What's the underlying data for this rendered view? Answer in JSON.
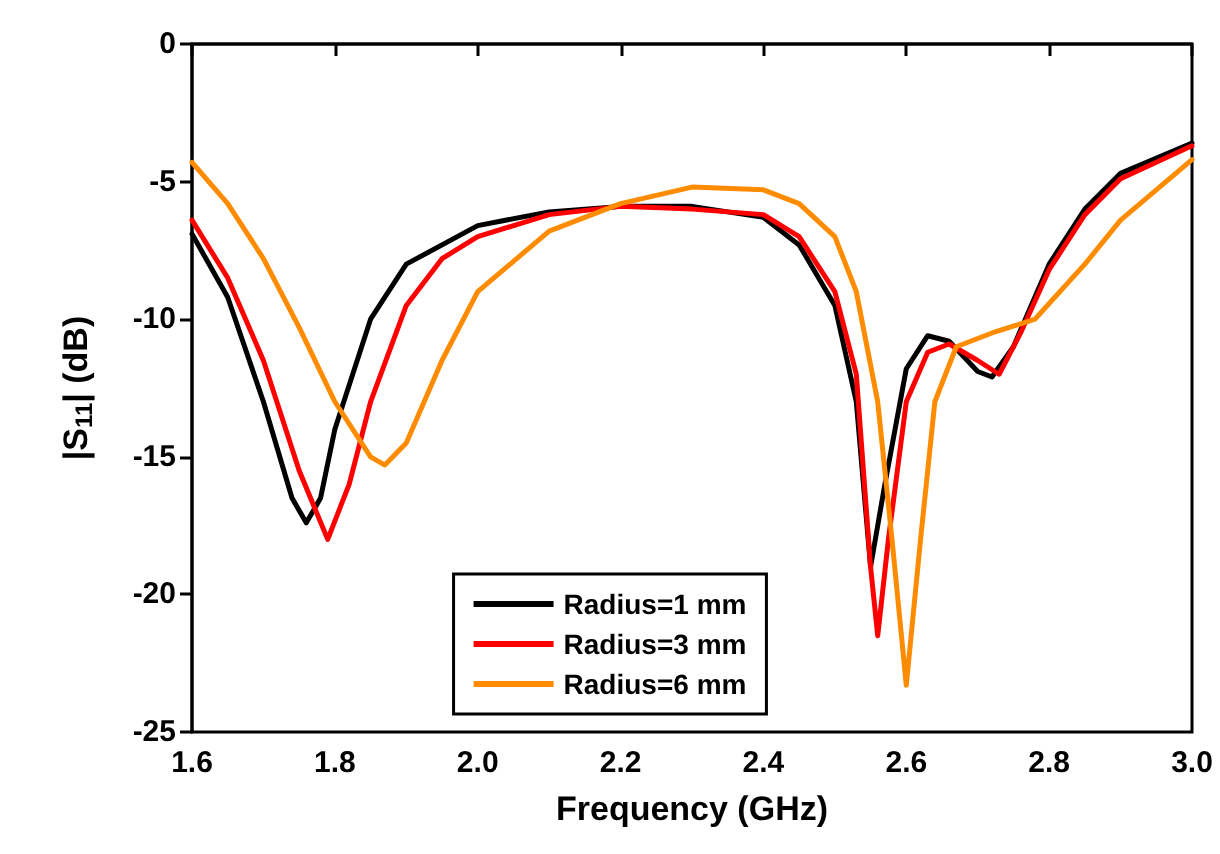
{
  "chart_data": {
    "type": "line",
    "xlabel": "Frequency (GHz)",
    "ylabel": "|S$_{11}$| (dB)",
    "xlim": [
      1.6,
      3.0
    ],
    "xticks": [
      {
        "value": 1.6,
        "label": "1.6"
      },
      {
        "value": 1.8,
        "label": "1.8"
      },
      {
        "value": 2.0,
        "label": "2.0"
      },
      {
        "value": 2.2,
        "label": "2.2"
      },
      {
        "value": 2.4,
        "label": "2.4"
      },
      {
        "value": 2.6,
        "label": "2.6"
      },
      {
        "value": 2.8,
        "label": "2.8"
      },
      {
        "value": 3.0,
        "label": "3.0"
      }
    ],
    "ylim": [
      -25,
      0
    ],
    "yticks": [
      -25,
      -20,
      -15,
      -10,
      -5,
      0
    ],
    "grid": false,
    "legend": "bottom",
    "marker": "none",
    "line_style": "solid",
    "series": [
      {
        "name": "Radius=1 mm",
        "color": "#000000",
        "x": [
          1.6,
          1.65,
          1.7,
          1.74,
          1.76,
          1.78,
          1.8,
          1.85,
          1.9,
          2.0,
          2.1,
          2.2,
          2.3,
          2.4,
          2.45,
          2.5,
          2.53,
          2.55,
          2.57,
          2.6,
          2.63,
          2.66,
          2.7,
          2.72,
          2.75,
          2.8,
          2.85,
          2.9,
          3.0
        ],
        "values": [
          -6.9,
          -9.2,
          -13,
          -16.5,
          -17.4,
          -16.5,
          -14,
          -10,
          -8,
          -6.6,
          -6.1,
          -5.9,
          -5.9,
          -6.3,
          -7.3,
          -9.5,
          -13,
          -19,
          -16,
          -11.8,
          -10.6,
          -10.8,
          -11.9,
          -12.1,
          -11,
          -8,
          -6,
          -4.7,
          -3.6
        ]
      },
      {
        "name": "Radius=3 mm",
        "color": "#ff0000",
        "x": [
          1.6,
          1.65,
          1.7,
          1.75,
          1.79,
          1.82,
          1.85,
          1.9,
          1.95,
          2.0,
          2.1,
          2.2,
          2.3,
          2.4,
          2.45,
          2.5,
          2.53,
          2.55,
          2.56,
          2.575,
          2.6,
          2.63,
          2.66,
          2.7,
          2.73,
          2.76,
          2.8,
          2.85,
          2.9,
          3.0
        ],
        "values": [
          -6.4,
          -8.5,
          -11.5,
          -15.5,
          -18,
          -16,
          -13,
          -9.5,
          -7.8,
          -7,
          -6.2,
          -5.9,
          -6,
          -6.2,
          -7,
          -9,
          -12,
          -19,
          -21.5,
          -18,
          -13,
          -11.2,
          -10.9,
          -11.5,
          -12,
          -10.5,
          -8.2,
          -6.2,
          -4.9,
          -3.7
        ]
      },
      {
        "name": "Radius=6 mm",
        "color": "#ff8c00",
        "x": [
          1.6,
          1.65,
          1.7,
          1.75,
          1.8,
          1.85,
          1.87,
          1.9,
          1.95,
          2.0,
          2.1,
          2.2,
          2.3,
          2.4,
          2.45,
          2.5,
          2.53,
          2.56,
          2.58,
          2.6,
          2.62,
          2.64,
          2.67,
          2.72,
          2.78,
          2.85,
          2.9,
          3.0
        ],
        "values": [
          -4.3,
          -5.8,
          -7.8,
          -10.3,
          -13,
          -15,
          -15.3,
          -14.5,
          -11.5,
          -9,
          -6.8,
          -5.8,
          -5.2,
          -5.3,
          -5.8,
          -7,
          -9,
          -13,
          -18,
          -23.3,
          -18,
          -13,
          -11,
          -10.5,
          -10,
          -8,
          -6.4,
          -4.2
        ]
      }
    ]
  }
}
